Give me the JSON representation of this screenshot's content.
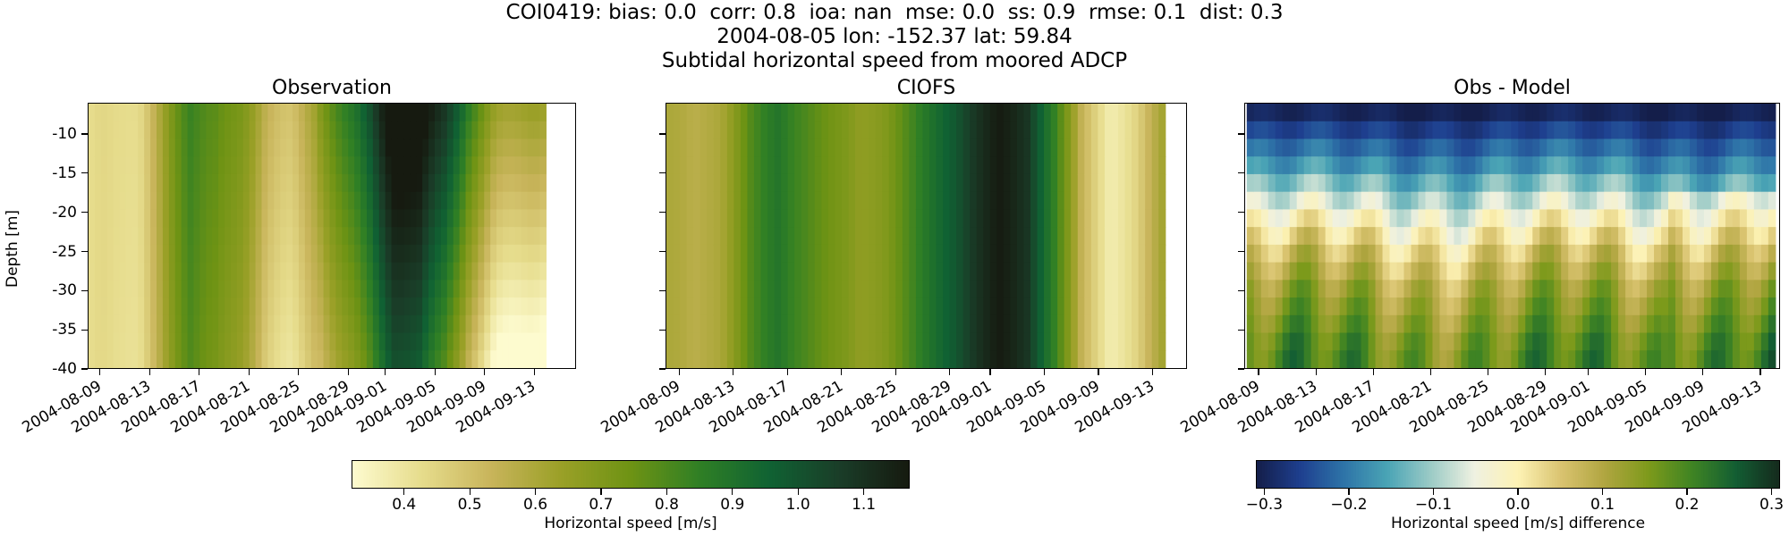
{
  "header": {
    "line1": "COI0419: bias: 0.0  corr: 0.8  ioa: nan  mse: 0.0  ss: 0.9  rmse: 0.1  dist: 0.3",
    "line2": "2004-08-05 lon: -152.37 lat: 59.84",
    "line3": "Subtidal horizontal speed from moored ADCP"
  },
  "chart_data": [
    {
      "type": "heatmap",
      "title": "Observation",
      "ylabel": "Depth [m]",
      "ylim": [
        -40,
        -6
      ],
      "yticks": [
        "-10",
        "-15",
        "-20",
        "-25",
        "-30",
        "-35",
        "-40"
      ],
      "xticks": [
        "2004-08-09",
        "2004-08-13",
        "2004-08-17",
        "2004-08-21",
        "2004-08-25",
        "2004-08-29",
        "2004-09-01",
        "2004-09-05",
        "2004-09-09",
        "2004-09-13"
      ],
      "time_range": [
        "2004-08-08",
        "2004-09-14"
      ],
      "colormap": "speed",
      "clim": [
        0.32,
        1.17
      ],
      "time_profile": [
        0.42,
        0.4,
        0.45,
        0.62,
        0.8,
        0.78,
        0.66,
        0.5,
        0.47,
        0.55,
        0.75,
        0.9,
        1.1,
        1.13,
        0.95,
        0.66,
        0.5,
        0.45,
        0.42
      ],
      "depth_gradient": [
        0.0,
        0.02,
        0.05,
        0.08,
        0.12,
        0.16,
        0.2,
        0.24,
        0.27,
        0.3
      ]
    },
    {
      "type": "heatmap",
      "title": "CIOFS",
      "ylim": [
        -40,
        -6
      ],
      "yticks": [
        "",
        "",
        "",
        "",
        "",
        "",
        ""
      ],
      "xticks": [
        "2004-08-09",
        "2004-08-13",
        "2004-08-17",
        "2004-08-21",
        "2004-08-25",
        "2004-08-29",
        "2004-09-01",
        "2004-09-05",
        "2004-09-09",
        "2004-09-13"
      ],
      "time_range": [
        "2004-08-08",
        "2004-09-14"
      ],
      "colormap": "speed",
      "clim": [
        0.32,
        1.17
      ],
      "time_profile": [
        0.6,
        0.55,
        0.62,
        0.78,
        0.88,
        0.82,
        0.72,
        0.66,
        0.72,
        0.82,
        0.95,
        1.08,
        1.15,
        1.1,
        0.85,
        0.52,
        0.38,
        0.45,
        0.62
      ],
      "depth_gradient": [
        0.0,
        0.0,
        0.0,
        0.0,
        0.0,
        0.0,
        0.0,
        0.0,
        0.0,
        0.0
      ]
    },
    {
      "type": "heatmap",
      "title": "Obs - Model",
      "ylim": [
        -40,
        -6
      ],
      "yticks": [
        "",
        "",
        "",
        "",
        "",
        "",
        ""
      ],
      "xticks": [
        "2004-08-09",
        "2004-08-13",
        "2004-08-17",
        "2004-08-21",
        "2004-08-25",
        "2004-08-29",
        "2004-09-01",
        "2004-09-05",
        "2004-09-09",
        "2004-09-13"
      ],
      "time_range": [
        "2004-08-08",
        "2004-09-14"
      ],
      "colormap": "diff",
      "clim": [
        -0.31,
        0.31
      ],
      "depth_profile": [
        -0.3,
        -0.26,
        -0.22,
        -0.18,
        -0.13,
        -0.08,
        -0.03,
        0.01,
        0.05,
        0.08,
        0.11,
        0.13,
        0.15,
        0.17,
        0.18
      ]
    }
  ],
  "colorbars": [
    {
      "label": "Horizontal speed [m/s]",
      "range": [
        0.32,
        1.17
      ],
      "ticks": [
        "0.4",
        "0.5",
        "0.6",
        "0.7",
        "0.8",
        "0.9",
        "1.0",
        "1.1"
      ],
      "tick_values": [
        0.4,
        0.5,
        0.6,
        0.7,
        0.8,
        0.9,
        1.0,
        1.1
      ]
    },
    {
      "label": "Horizontal speed [m/s] difference",
      "range": [
        -0.31,
        0.31
      ],
      "ticks": [
        "−0.3",
        "−0.2",
        "−0.1",
        "0.0",
        "0.1",
        "0.2",
        "0.3"
      ],
      "tick_values": [
        -0.3,
        -0.2,
        -0.1,
        0.0,
        0.1,
        0.2,
        0.3
      ]
    }
  ],
  "colors": {
    "speed": [
      "#fdfbcf",
      "#e6dc8c",
      "#c8b45a",
      "#9aa027",
      "#6e9314",
      "#2f7f25",
      "#106233",
      "#1a3d28",
      "#161a10"
    ],
    "diff": [
      "#141e4a",
      "#1e3f8f",
      "#2e74a8",
      "#4aa4b5",
      "#9ccbc6",
      "#eff1e1",
      "#fdf2b4",
      "#d9c36f",
      "#b0a540",
      "#7d9a1b",
      "#3f8423",
      "#135e33",
      "#152a1d"
    ]
  }
}
